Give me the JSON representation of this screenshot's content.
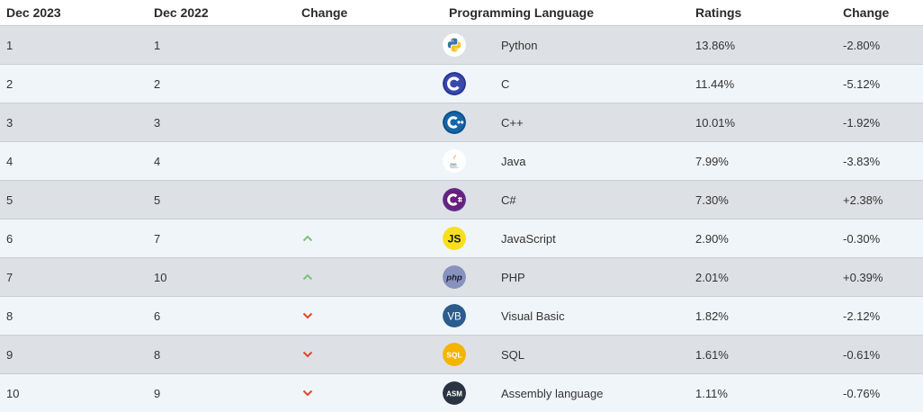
{
  "table": {
    "headers": {
      "dec2023": "Dec 2023",
      "dec2022": "Dec 2022",
      "change": "Change",
      "language": "Programming Language",
      "ratings": "Ratings",
      "change_pct": "Change"
    },
    "rows": [
      {
        "dec2023": "1",
        "dec2022": "1",
        "trend": "none",
        "icon": "python-logo-icon",
        "name": "Python",
        "rating": "13.86%",
        "change": "-2.80%"
      },
      {
        "dec2023": "2",
        "dec2022": "2",
        "trend": "none",
        "icon": "c-logo-icon",
        "name": "C",
        "rating": "11.44%",
        "change": "-5.12%"
      },
      {
        "dec2023": "3",
        "dec2022": "3",
        "trend": "none",
        "icon": "cpp-logo-icon",
        "name": "C++",
        "rating": "10.01%",
        "change": "-1.92%"
      },
      {
        "dec2023": "4",
        "dec2022": "4",
        "trend": "none",
        "icon": "java-logo-icon",
        "name": "Java",
        "rating": "7.99%",
        "change": "-3.83%"
      },
      {
        "dec2023": "5",
        "dec2022": "5",
        "trend": "none",
        "icon": "csharp-logo-icon",
        "name": "C#",
        "rating": "7.30%",
        "change": "+2.38%"
      },
      {
        "dec2023": "6",
        "dec2022": "7",
        "trend": "up",
        "icon": "javascript-logo-icon",
        "name": "JavaScript",
        "rating": "2.90%",
        "change": "-0.30%"
      },
      {
        "dec2023": "7",
        "dec2022": "10",
        "trend": "up",
        "icon": "php-logo-icon",
        "name": "PHP",
        "rating": "2.01%",
        "change": "+0.39%"
      },
      {
        "dec2023": "8",
        "dec2022": "6",
        "trend": "down",
        "icon": "visual-basic-logo-icon",
        "name": "Visual Basic",
        "rating": "1.82%",
        "change": "-2.12%"
      },
      {
        "dec2023": "9",
        "dec2022": "8",
        "trend": "down",
        "icon": "sql-logo-icon",
        "name": "SQL",
        "rating": "1.61%",
        "change": "-0.61%"
      },
      {
        "dec2023": "10",
        "dec2022": "9",
        "trend": "down",
        "icon": "assembly-logo-icon",
        "name": "Assembly language",
        "rating": "1.11%",
        "change": "-0.76%"
      }
    ]
  },
  "logos": {
    "js_text": "JS",
    "php_text": "php",
    "vb_text": "VB",
    "sql_text": "SQL",
    "asm_text": "ASM"
  },
  "colors": {
    "trend_up": "#7cc47c",
    "trend_down": "#e0462a",
    "row_odd": "#dde1e5",
    "row_even": "#f0f5f9"
  }
}
